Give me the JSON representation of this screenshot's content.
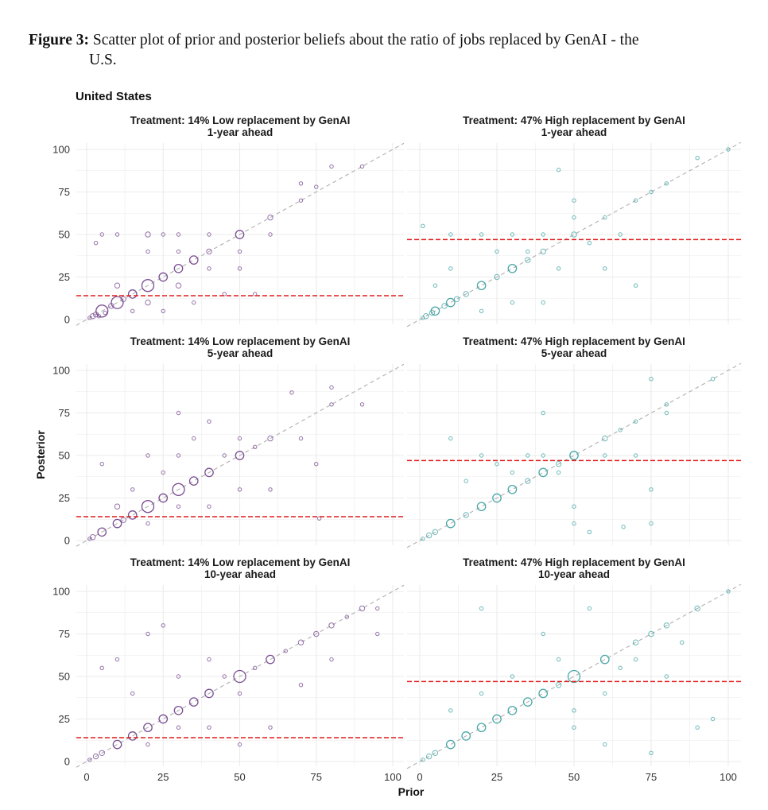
{
  "caption": {
    "label": "Figure 3:",
    "text_line1": "Scatter plot of prior and posterior beliefs about the ratio of jobs replaced by GenAI - the",
    "text_line2": "U.S."
  },
  "country": "United States",
  "colors": {
    "low": "#7b4f93",
    "high": "#4aa8a8",
    "reference": "#e31a1c",
    "diagonal": "#b0b0b0",
    "grid": "#ebebeb"
  },
  "chart_data": {
    "type": "scatter",
    "xlabel": "Prior",
    "ylabel": "Posterior",
    "xlim": [
      0,
      100
    ],
    "ylim": [
      0,
      100
    ],
    "xticks": [
      0,
      25,
      50,
      75,
      100
    ],
    "yticks": [
      0,
      25,
      50,
      75,
      100
    ],
    "grid": true,
    "diagonal_reference": true,
    "panels": [
      {
        "title_line1": "Treatment: 14% Low replacement by GenAI",
        "title_line2": "1-year ahead",
        "group": "low",
        "reference_line": 14,
        "points": [
          [
            1,
            1,
            1
          ],
          [
            2,
            2,
            2
          ],
          [
            3,
            3,
            2
          ],
          [
            4,
            2,
            1
          ],
          [
            5,
            5,
            4
          ],
          [
            6,
            4,
            1
          ],
          [
            8,
            8,
            2
          ],
          [
            10,
            10,
            4
          ],
          [
            10,
            20,
            2
          ],
          [
            12,
            12,
            2
          ],
          [
            15,
            15,
            3
          ],
          [
            20,
            20,
            4
          ],
          [
            20,
            10,
            2
          ],
          [
            25,
            25,
            3
          ],
          [
            30,
            30,
            3
          ],
          [
            30,
            20,
            2
          ],
          [
            35,
            35,
            3
          ],
          [
            40,
            40,
            2
          ],
          [
            50,
            50,
            3
          ],
          [
            60,
            60,
            2
          ],
          [
            70,
            70,
            1
          ],
          [
            80,
            90,
            1
          ],
          [
            5,
            50,
            1
          ],
          [
            3,
            45,
            1
          ],
          [
            10,
            50,
            1
          ],
          [
            20,
            50,
            2
          ],
          [
            25,
            50,
            1
          ],
          [
            30,
            50,
            1
          ],
          [
            40,
            50,
            1
          ],
          [
            50,
            30,
            1
          ],
          [
            60,
            50,
            1
          ],
          [
            75,
            78,
            1
          ],
          [
            70,
            80,
            1
          ],
          [
            90,
            90,
            1
          ],
          [
            15,
            5,
            1
          ],
          [
            25,
            5,
            1
          ],
          [
            35,
            10,
            1
          ],
          [
            45,
            15,
            1
          ],
          [
            55,
            15,
            1
          ],
          [
            20,
            40,
            1
          ],
          [
            30,
            40,
            1
          ],
          [
            40,
            30,
            1
          ],
          [
            50,
            40,
            1
          ]
        ]
      },
      {
        "title_line1": "Treatment: 47% High replacement by GenAI",
        "title_line2": "1-year ahead",
        "group": "high",
        "reference_line": 47,
        "points": [
          [
            1,
            1,
            1
          ],
          [
            2,
            2,
            2
          ],
          [
            4,
            4,
            2
          ],
          [
            5,
            5,
            3
          ],
          [
            8,
            8,
            2
          ],
          [
            10,
            10,
            3
          ],
          [
            12,
            12,
            2
          ],
          [
            15,
            15,
            2
          ],
          [
            20,
            20,
            3
          ],
          [
            25,
            25,
            2
          ],
          [
            30,
            30,
            3
          ],
          [
            35,
            35,
            2
          ],
          [
            40,
            40,
            2
          ],
          [
            50,
            50,
            2
          ],
          [
            60,
            60,
            1
          ],
          [
            70,
            70,
            1
          ],
          [
            75,
            75,
            1
          ],
          [
            80,
            80,
            1
          ],
          [
            100,
            100,
            1
          ],
          [
            1,
            55,
            1
          ],
          [
            10,
            50,
            1
          ],
          [
            20,
            50,
            1
          ],
          [
            30,
            50,
            1
          ],
          [
            40,
            50,
            1
          ],
          [
            50,
            60,
            1
          ],
          [
            45,
            88,
            1
          ],
          [
            70,
            20,
            1
          ],
          [
            60,
            30,
            1
          ],
          [
            40,
            10,
            1
          ],
          [
            20,
            5,
            1
          ],
          [
            10,
            30,
            1
          ],
          [
            5,
            20,
            1
          ],
          [
            25,
            40,
            1
          ],
          [
            35,
            40,
            1
          ],
          [
            45,
            30,
            1
          ],
          [
            55,
            45,
            1
          ],
          [
            65,
            50,
            1
          ],
          [
            90,
            95,
            1
          ],
          [
            50,
            70,
            1
          ],
          [
            30,
            10,
            1
          ]
        ]
      },
      {
        "title_line1": "Treatment: 14% Low replacement by GenAI",
        "title_line2": "5-year ahead",
        "group": "low",
        "reference_line": 14,
        "points": [
          [
            1,
            1,
            1
          ],
          [
            2,
            2,
            2
          ],
          [
            5,
            5,
            3
          ],
          [
            10,
            10,
            3
          ],
          [
            12,
            12,
            2
          ],
          [
            15,
            15,
            3
          ],
          [
            20,
            20,
            4
          ],
          [
            25,
            25,
            3
          ],
          [
            30,
            30,
            4
          ],
          [
            35,
            35,
            3
          ],
          [
            40,
            40,
            3
          ],
          [
            50,
            50,
            3
          ],
          [
            60,
            60,
            2
          ],
          [
            70,
            60,
            1
          ],
          [
            80,
            80,
            1
          ],
          [
            90,
            80,
            1
          ],
          [
            80,
            90,
            1
          ],
          [
            67,
            87,
            1
          ],
          [
            5,
            45,
            1
          ],
          [
            10,
            20,
            2
          ],
          [
            20,
            50,
            1
          ],
          [
            30,
            50,
            1
          ],
          [
            40,
            70,
            1
          ],
          [
            50,
            60,
            1
          ],
          [
            60,
            30,
            1
          ],
          [
            75,
            45,
            1
          ],
          [
            76,
            13,
            1
          ],
          [
            20,
            10,
            1
          ],
          [
            30,
            20,
            1
          ],
          [
            40,
            20,
            1
          ],
          [
            50,
            30,
            1
          ],
          [
            25,
            40,
            1
          ],
          [
            35,
            60,
            1
          ],
          [
            45,
            50,
            1
          ],
          [
            55,
            55,
            1
          ],
          [
            30,
            75,
            1
          ],
          [
            15,
            30,
            1
          ]
        ]
      },
      {
        "title_line1": "Treatment: 47% High replacement by GenAI",
        "title_line2": "5-year ahead",
        "group": "high",
        "reference_line": 47,
        "points": [
          [
            1,
            1,
            1
          ],
          [
            3,
            3,
            2
          ],
          [
            5,
            5,
            2
          ],
          [
            10,
            10,
            3
          ],
          [
            15,
            15,
            2
          ],
          [
            20,
            20,
            3
          ],
          [
            25,
            25,
            3
          ],
          [
            30,
            30,
            3
          ],
          [
            35,
            35,
            2
          ],
          [
            40,
            40,
            3
          ],
          [
            45,
            45,
            2
          ],
          [
            50,
            50,
            3
          ],
          [
            60,
            60,
            2
          ],
          [
            65,
            65,
            1
          ],
          [
            70,
            70,
            1
          ],
          [
            80,
            80,
            1
          ],
          [
            95,
            95,
            1
          ],
          [
            75,
            95,
            1
          ],
          [
            40,
            75,
            1
          ],
          [
            10,
            60,
            1
          ],
          [
            20,
            50,
            1
          ],
          [
            30,
            40,
            1
          ],
          [
            40,
            50,
            1
          ],
          [
            50,
            20,
            1
          ],
          [
            50,
            10,
            1
          ],
          [
            55,
            5,
            1
          ],
          [
            75,
            10,
            1
          ],
          [
            75,
            30,
            1
          ],
          [
            60,
            50,
            1
          ],
          [
            45,
            40,
            1
          ],
          [
            35,
            50,
            1
          ],
          [
            25,
            45,
            1
          ],
          [
            15,
            35,
            1
          ],
          [
            66,
            8,
            1
          ],
          [
            70,
            50,
            1
          ],
          [
            80,
            75,
            1
          ]
        ]
      },
      {
        "title_line1": "Treatment: 14% Low replacement by GenAI",
        "title_line2": "10-year ahead",
        "group": "low",
        "reference_line": 14,
        "points": [
          [
            1,
            1,
            1
          ],
          [
            3,
            3,
            2
          ],
          [
            5,
            5,
            2
          ],
          [
            10,
            10,
            3
          ],
          [
            15,
            15,
            3
          ],
          [
            20,
            20,
            3
          ],
          [
            25,
            25,
            3
          ],
          [
            30,
            30,
            3
          ],
          [
            35,
            35,
            3
          ],
          [
            40,
            40,
            3
          ],
          [
            50,
            50,
            4
          ],
          [
            60,
            60,
            3
          ],
          [
            70,
            70,
            2
          ],
          [
            75,
            75,
            2
          ],
          [
            80,
            80,
            2
          ],
          [
            90,
            90,
            2
          ],
          [
            95,
            75,
            1
          ],
          [
            95,
            90,
            1
          ],
          [
            5,
            55,
            1
          ],
          [
            10,
            60,
            1
          ],
          [
            20,
            75,
            1
          ],
          [
            25,
            80,
            1
          ],
          [
            30,
            50,
            1
          ],
          [
            40,
            60,
            1
          ],
          [
            50,
            40,
            1
          ],
          [
            60,
            20,
            1
          ],
          [
            70,
            45,
            1
          ],
          [
            80,
            60,
            1
          ],
          [
            40,
            20,
            1
          ],
          [
            30,
            20,
            1
          ],
          [
            20,
            10,
            1
          ],
          [
            45,
            50,
            1
          ],
          [
            55,
            55,
            1
          ],
          [
            65,
            65,
            1
          ],
          [
            85,
            85,
            1
          ],
          [
            15,
            40,
            1
          ],
          [
            50,
            10,
            1
          ]
        ]
      },
      {
        "title_line1": "Treatment: 47% High replacement by GenAI",
        "title_line2": "10-year ahead",
        "group": "high",
        "reference_line": 47,
        "points": [
          [
            1,
            1,
            1
          ],
          [
            3,
            3,
            2
          ],
          [
            5,
            5,
            2
          ],
          [
            10,
            10,
            3
          ],
          [
            15,
            15,
            3
          ],
          [
            20,
            20,
            3
          ],
          [
            25,
            25,
            3
          ],
          [
            30,
            30,
            3
          ],
          [
            35,
            35,
            3
          ],
          [
            40,
            40,
            3
          ],
          [
            45,
            45,
            2
          ],
          [
            50,
            50,
            4
          ],
          [
            60,
            60,
            3
          ],
          [
            70,
            70,
            2
          ],
          [
            75,
            75,
            2
          ],
          [
            80,
            80,
            2
          ],
          [
            90,
            90,
            2
          ],
          [
            100,
            100,
            1
          ],
          [
            20,
            90,
            1
          ],
          [
            40,
            75,
            1
          ],
          [
            50,
            30,
            1
          ],
          [
            55,
            90,
            1
          ],
          [
            60,
            10,
            1
          ],
          [
            75,
            5,
            1
          ],
          [
            90,
            20,
            1
          ],
          [
            95,
            25,
            1
          ],
          [
            80,
            50,
            1
          ],
          [
            65,
            55,
            1
          ],
          [
            45,
            60,
            1
          ],
          [
            30,
            50,
            1
          ],
          [
            20,
            40,
            1
          ],
          [
            10,
            30,
            1
          ],
          [
            60,
            40,
            1
          ],
          [
            70,
            60,
            1
          ],
          [
            85,
            70,
            1
          ],
          [
            50,
            20,
            1
          ]
        ]
      }
    ]
  }
}
